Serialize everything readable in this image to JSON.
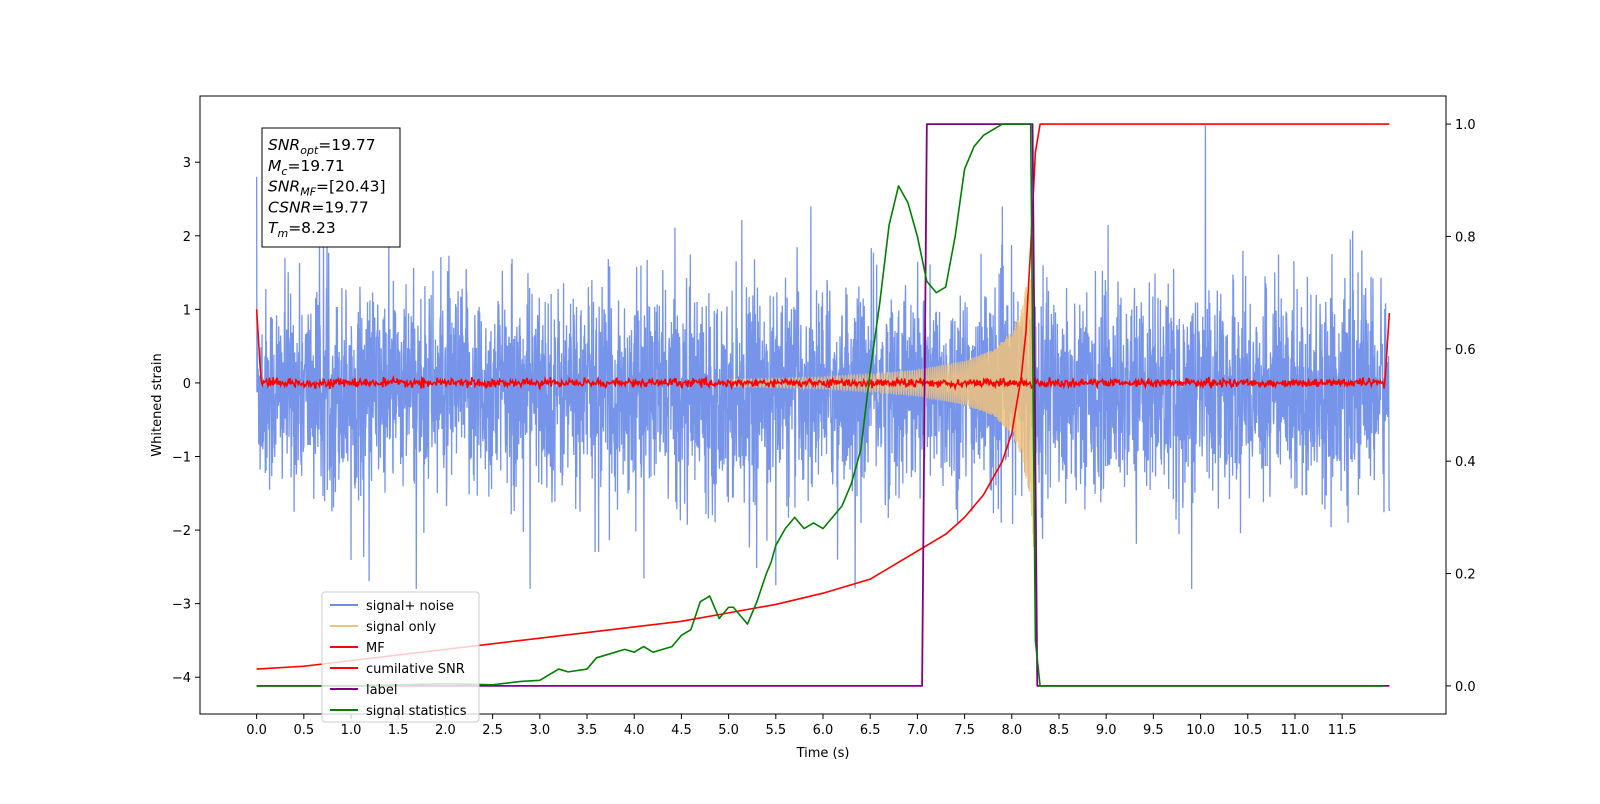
{
  "chart_data": {
    "type": "line",
    "xlabel": "Time (s)",
    "ylabel": "Whitened strain",
    "xlim": [
      -0.6,
      12.6
    ],
    "ylim_left": [
      -4.5,
      3.9
    ],
    "ylim_right": [
      -0.05,
      1.05
    ],
    "x_ticks": [
      "0.0",
      "0.5",
      "1.0",
      "1.5",
      "2.0",
      "2.5",
      "3.0",
      "3.5",
      "4.0",
      "4.5",
      "5.0",
      "5.5",
      "6.0",
      "6.5",
      "7.0",
      "7.5",
      "8.0",
      "8.5",
      "9.0",
      "9.5",
      "10.0",
      "10.5",
      "11.0",
      "11.5"
    ],
    "y_left_ticks": [
      "3",
      "2",
      "1",
      "0",
      "−1",
      "−2",
      "−3",
      "−4"
    ],
    "y_left_tick_values": [
      3,
      2,
      1,
      0,
      -1,
      -2,
      -3,
      -4
    ],
    "y_right_ticks": [
      "1.0",
      "0.8",
      "0.6",
      "0.4",
      "0.2",
      "0.0"
    ],
    "y_right_tick_values": [
      1.0,
      0.8,
      0.6,
      0.4,
      0.2,
      0.0
    ],
    "grid": false,
    "legend_position": "bottom-left",
    "annotations": [
      {
        "base": "SNR",
        "sub": "opt",
        "value": "=19.77"
      },
      {
        "base": "M",
        "sub": "c",
        "value": "=19.71"
      },
      {
        "base": "SNR",
        "sub": "MF",
        "value": "=[20.43]"
      },
      {
        "base": "CSNR",
        "sub": "",
        "value": "=19.77"
      },
      {
        "base": "T",
        "sub": "m",
        "value": "=8.23"
      }
    ],
    "series": [
      {
        "name": "signal+ noise",
        "axis": "left",
        "color": "#6f8ee8",
        "style": "noise",
        "x_range": [
          0.0,
          12.0
        ],
        "envelope_typical": 1.2,
        "envelope_peak": 2.8,
        "mean_offset": -0.1,
        "notable_spikes": [
          {
            "x": 10.05,
            "y": 3.5
          },
          {
            "x": 0.0,
            "y": 2.8
          },
          {
            "x": 5.5,
            "y": -2.75
          }
        ]
      },
      {
        "name": "signal only",
        "axis": "left",
        "color": "#f0c27b",
        "style": "chirp",
        "x_range": [
          5.0,
          8.23
        ],
        "envelope": {
          "x": [
            5.0,
            6.0,
            6.5,
            7.0,
            7.5,
            7.8,
            8.0,
            8.1,
            8.2,
            8.23
          ],
          "y": [
            0.05,
            0.08,
            0.12,
            0.18,
            0.3,
            0.45,
            0.7,
            1.0,
            1.6,
            2.3
          ]
        }
      },
      {
        "name": "MF",
        "axis": "left",
        "color": "#ff0000",
        "style": "noise",
        "x_range": [
          0.0,
          12.0
        ],
        "envelope_typical": 0.06,
        "start_value": 1.0,
        "end_value": 0.95
      },
      {
        "name": "cumilative SNR",
        "axis": "right",
        "color": "#ff0000",
        "style": "line",
        "x": [
          0.0,
          0.5,
          1.0,
          1.5,
          2.0,
          2.5,
          3.0,
          3.5,
          4.0,
          4.5,
          5.0,
          5.5,
          6.0,
          6.5,
          7.0,
          7.3,
          7.5,
          7.7,
          7.9,
          8.0,
          8.1,
          8.15,
          8.2,
          8.25,
          8.3,
          12.0
        ],
        "y": [
          0.03,
          0.035,
          0.045,
          0.055,
          0.065,
          0.075,
          0.085,
          0.095,
          0.105,
          0.115,
          0.13,
          0.145,
          0.165,
          0.19,
          0.24,
          0.27,
          0.3,
          0.34,
          0.4,
          0.45,
          0.55,
          0.63,
          0.78,
          0.95,
          1.0,
          1.0
        ]
      },
      {
        "name": "label",
        "axis": "right",
        "color": "#800080",
        "style": "line",
        "x": [
          0.0,
          7.05,
          7.1,
          8.22,
          8.27,
          12.0
        ],
        "y": [
          0.0,
          0.0,
          1.0,
          1.0,
          0.0,
          0.0
        ]
      },
      {
        "name": "signal statistics",
        "axis": "right",
        "color": "#008000",
        "style": "line",
        "x": [
          0.0,
          0.5,
          1.0,
          1.5,
          2.0,
          2.5,
          2.8,
          3.0,
          3.2,
          3.3,
          3.5,
          3.6,
          3.8,
          3.9,
          4.0,
          4.1,
          4.2,
          4.3,
          4.4,
          4.5,
          4.6,
          4.7,
          4.8,
          4.9,
          5.0,
          5.05,
          5.1,
          5.2,
          5.3,
          5.4,
          5.45,
          5.5,
          5.6,
          5.7,
          5.8,
          5.9,
          6.0,
          6.1,
          6.2,
          6.3,
          6.4,
          6.5,
          6.6,
          6.7,
          6.8,
          6.9,
          7.0,
          7.1,
          7.2,
          7.3,
          7.4,
          7.5,
          7.6,
          7.7,
          7.8,
          7.9,
          8.0,
          8.1,
          8.2,
          8.25,
          8.3,
          9.0,
          10.0,
          11.0,
          11.95
        ],
        "y": [
          0.0,
          0.0,
          0.0,
          0.002,
          0.004,
          0.002,
          0.008,
          0.01,
          0.03,
          0.025,
          0.03,
          0.05,
          0.06,
          0.065,
          0.06,
          0.07,
          0.06,
          0.065,
          0.07,
          0.09,
          0.1,
          0.15,
          0.16,
          0.12,
          0.14,
          0.14,
          0.13,
          0.11,
          0.15,
          0.2,
          0.22,
          0.25,
          0.28,
          0.3,
          0.28,
          0.29,
          0.28,
          0.3,
          0.32,
          0.36,
          0.42,
          0.56,
          0.68,
          0.82,
          0.89,
          0.86,
          0.8,
          0.72,
          0.7,
          0.71,
          0.8,
          0.92,
          0.96,
          0.98,
          0.99,
          1.0,
          1.0,
          1.0,
          1.0,
          0.08,
          0.0,
          0.0,
          0.0,
          0.0,
          0.0
        ]
      }
    ]
  }
}
